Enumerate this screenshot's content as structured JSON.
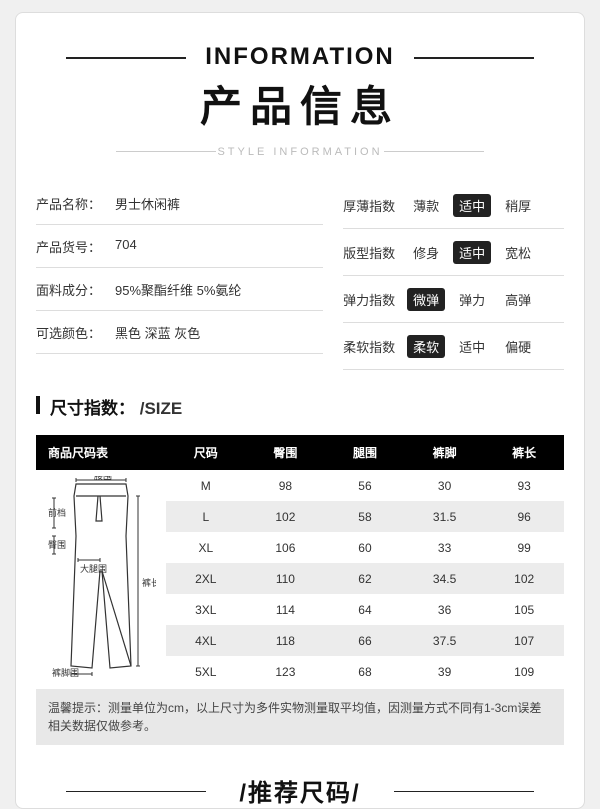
{
  "header": {
    "en": "INFORMATION",
    "cn": "产品信息",
    "sub": "STYLE INFORMATION"
  },
  "info_left": [
    {
      "label": "产品名称：",
      "value": "男士休闲裤"
    },
    {
      "label": "产品货号：",
      "value": "704"
    },
    {
      "label": "面料成分：",
      "value": "95%聚酯纤维 5%氨纶"
    },
    {
      "label": "可选颜色：",
      "value": "黑色 深蓝 灰色"
    }
  ],
  "info_right": [
    {
      "label": "厚薄指数",
      "options": [
        "薄款",
        "适中",
        "稍厚"
      ],
      "selected": 1
    },
    {
      "label": "版型指数",
      "options": [
        "修身",
        "适中",
        "宽松"
      ],
      "selected": 1
    },
    {
      "label": "弹力指数",
      "options": [
        "微弹",
        "弹力",
        "高弹"
      ],
      "selected": 0
    },
    {
      "label": "柔软指数",
      "options": [
        "柔软",
        "适中",
        "偏硬"
      ],
      "selected": 0
    }
  ],
  "size_section": {
    "title_cn": "尺寸指数：",
    "title_en": "/SIZE"
  },
  "size_table": {
    "columns": [
      "商品尺码表",
      "尺码",
      "臀围",
      "腿围",
      "裤脚",
      "裤长"
    ],
    "rows": [
      [
        "M",
        "98",
        "56",
        "30",
        "93"
      ],
      [
        "L",
        "102",
        "58",
        "31.5",
        "96"
      ],
      [
        "XL",
        "106",
        "60",
        "33",
        "99"
      ],
      [
        "2XL",
        "110",
        "62",
        "34.5",
        "102"
      ],
      [
        "3XL",
        "114",
        "64",
        "36",
        "105"
      ],
      [
        "4XL",
        "118",
        "66",
        "37.5",
        "107"
      ],
      [
        "5XL",
        "123",
        "68",
        "39",
        "109"
      ]
    ],
    "diagram_labels": [
      "腰围",
      "前档",
      "臀围",
      "大腿围",
      "裤长",
      "裤脚围"
    ],
    "colors": {
      "header_bg": "#000000",
      "header_fg": "#ffffff",
      "row_alt_bg": "#ececec",
      "text": "#333333"
    }
  },
  "tip": "温馨提示：测量单位为cm，以上尺寸为多件实物测量取平均值，因测量方式不同有1-3cm误差 相关数据仅做参考。",
  "recommend": {
    "title": "/推荐尺码/"
  }
}
